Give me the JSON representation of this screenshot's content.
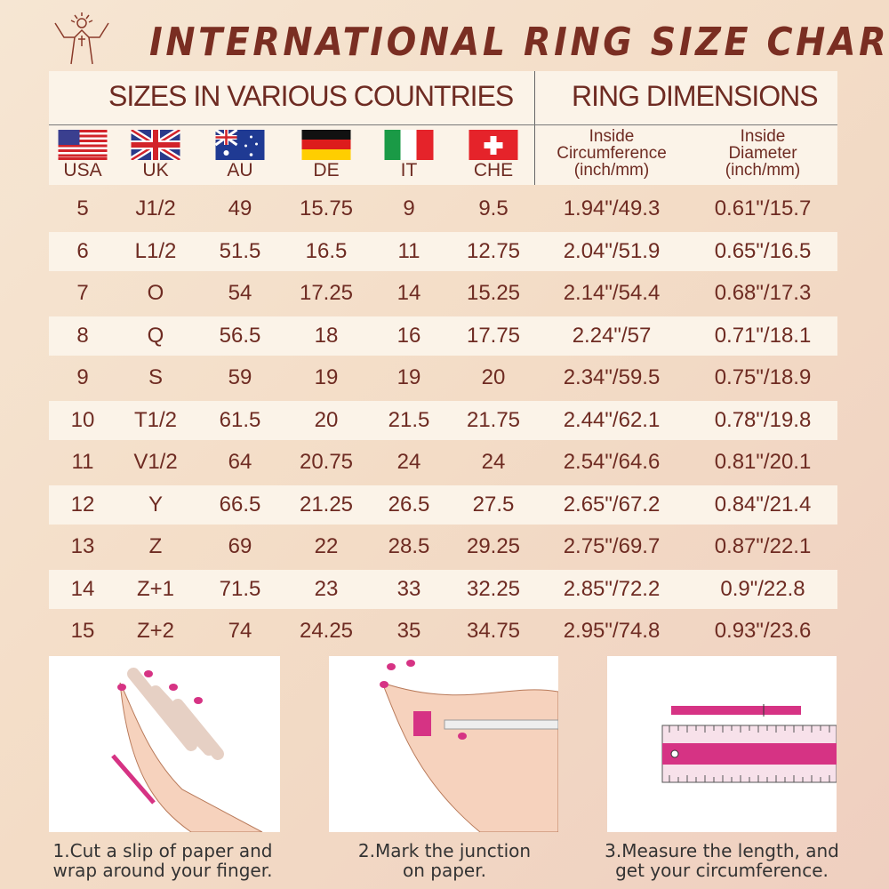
{
  "title": "INTERNATIONAL RING SIZE CHART",
  "sections": {
    "sizes": "SIZES IN VARIOUS COUNTRIES",
    "dimensions": "RING DIMENSIONS"
  },
  "countries": [
    "USA",
    "UK",
    "AU",
    "DE",
    "IT",
    "CHE"
  ],
  "dimension_headers": [
    {
      "line1": "Inside",
      "line2": "Circumference",
      "line3": "(inch/mm)"
    },
    {
      "line1": "Inside",
      "line2": "Diameter",
      "line3": "(inch/mm)"
    }
  ],
  "rows": [
    [
      "5",
      "J1/2",
      "49",
      "15.75",
      "9",
      "9.5",
      "1.94\"/49.3",
      "0.61\"/15.7"
    ],
    [
      "6",
      "L1/2",
      "51.5",
      "16.5",
      "11",
      "12.75",
      "2.04\"/51.9",
      "0.65\"/16.5"
    ],
    [
      "7",
      "O",
      "54",
      "17.25",
      "14",
      "15.25",
      "2.14\"/54.4",
      "0.68\"/17.3"
    ],
    [
      "8",
      "Q",
      "56.5",
      "18",
      "16",
      "17.75",
      "2.24\"/57",
      "0.71\"/18.1"
    ],
    [
      "9",
      "S",
      "59",
      "19",
      "19",
      "20",
      "2.34\"/59.5",
      "0.75\"/18.9"
    ],
    [
      "10",
      "T1/2",
      "61.5",
      "20",
      "21.5",
      "21.75",
      "2.44\"/62.1",
      "0.78\"/19.8"
    ],
    [
      "11",
      "V1/2",
      "64",
      "20.75",
      "24",
      "24",
      "2.54\"/64.6",
      "0.81\"/20.1"
    ],
    [
      "12",
      "Y",
      "66.5",
      "21.25",
      "26.5",
      "27.5",
      "2.65\"/67.2",
      "0.84\"/21.4"
    ],
    [
      "13",
      "Z",
      "69",
      "22",
      "28.5",
      "29.25",
      "2.75\"/69.7",
      "0.87\"/22.1"
    ],
    [
      "14",
      "Z+1",
      "71.5",
      "23",
      "33",
      "32.25",
      "2.85\"/72.2",
      "0.9\"/22.8"
    ],
    [
      "15",
      "Z+2",
      "74",
      "24.25",
      "35",
      "34.75",
      "2.95\"/74.8",
      "0.93\"/23.6"
    ]
  ],
  "steps": [
    {
      "line1": "1.Cut a slip of paper and",
      "line2": "wrap around your finger."
    },
    {
      "line1": "2.Mark the junction",
      "line2": "on paper."
    },
    {
      "line1": "3.Measure the length, and",
      "line2": "get your circumference."
    }
  ],
  "colors": {
    "text": "#6e2b22",
    "band": "#fbf3e8",
    "accent_pink": "#d63384"
  }
}
